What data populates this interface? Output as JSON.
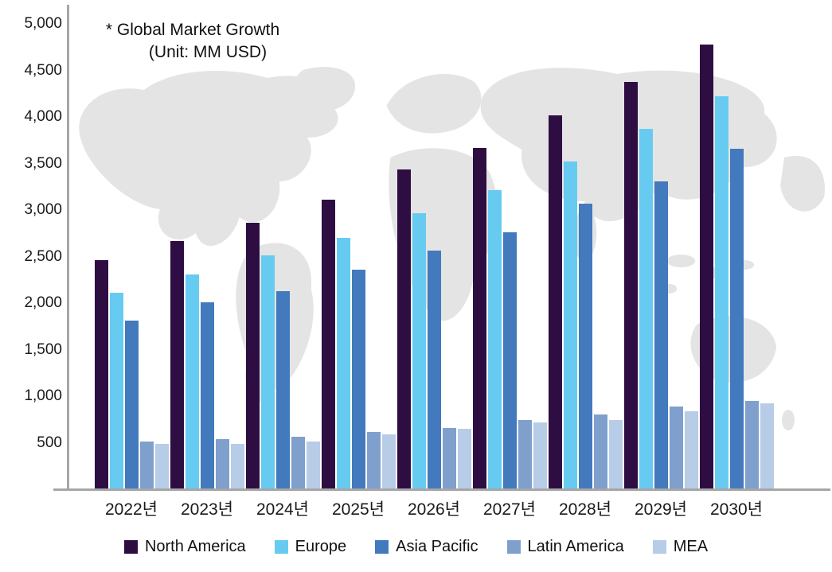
{
  "annotation": {
    "line1": "* Global Market Growth",
    "line2": "(Unit: MM USD)"
  },
  "chart_data": {
    "type": "bar",
    "title": "Global Market Growth",
    "unit": "MM USD",
    "categories": [
      "2022년",
      "2023년",
      "2024년",
      "2025년",
      "2026년",
      "2027년",
      "2028년",
      "2029년",
      "2030년"
    ],
    "series": [
      {
        "name": "North America",
        "color": "#2e0e42",
        "values": [
          2460,
          2670,
          2865,
          3115,
          3435,
          3670,
          4020,
          4380,
          4780
        ]
      },
      {
        "name": "Europe",
        "color": "#67cbf1",
        "values": [
          2110,
          2310,
          2515,
          2705,
          2970,
          3215,
          3525,
          3870,
          4225
        ]
      },
      {
        "name": "Asia Pacific",
        "color": "#4379bd",
        "values": [
          1810,
          2010,
          2130,
          2355,
          2565,
          2760,
          3065,
          3310,
          3660
        ]
      },
      {
        "name": "Latin America",
        "color": "#7fa0cd",
        "values": [
          510,
          535,
          560,
          615,
          655,
          740,
          800,
          890,
          950
        ]
      },
      {
        "name": "MEA",
        "color": "#b7cce7",
        "values": [
          490,
          490,
          515,
          590,
          650,
          720,
          740,
          840,
          925
        ]
      }
    ],
    "y_axis": {
      "min": 0,
      "max": 5000,
      "tick_interval": 500,
      "ticks": [
        {
          "value": 500,
          "label": "500"
        },
        {
          "value": 1000,
          "label": "1,000"
        },
        {
          "value": 1500,
          "label": "1,500"
        },
        {
          "value": 2000,
          "label": "2,000"
        },
        {
          "value": 2500,
          "label": "2,500"
        },
        {
          "value": 3000,
          "label": "3,000"
        },
        {
          "value": 3500,
          "label": "3,500"
        },
        {
          "value": 4000,
          "label": "4,000"
        },
        {
          "value": 4500,
          "label": "4,500"
        },
        {
          "value": 5000,
          "label": "5,000"
        }
      ]
    },
    "grid": false,
    "legend_position": "bottom"
  },
  "colors": {
    "axis_line": "#a6a6a6",
    "text": "#1a1a1a",
    "map_watermark": "#e4e4e4"
  }
}
